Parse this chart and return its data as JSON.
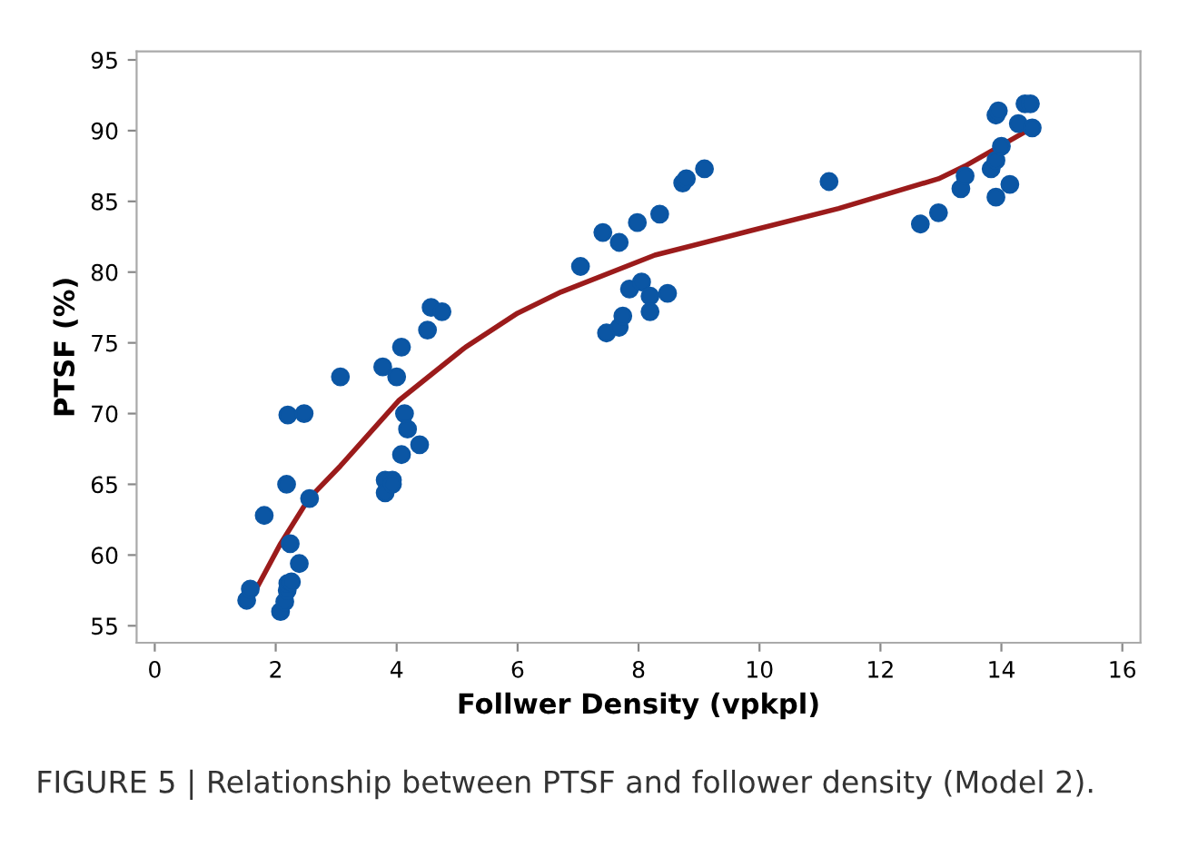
{
  "chart_data": {
    "type": "scatter",
    "xlabel": "Follwer Density (vpkpl)",
    "ylabel": "PTSF (%)",
    "annotations": [
      "FIGURE 5 | Relationship between PTSF and follower density (Model 2)."
    ],
    "xlim": [
      -0.3,
      16.3
    ],
    "ylim": [
      53.8,
      95.6
    ],
    "xticks": [
      0,
      2,
      4,
      6,
      8,
      10,
      12,
      14,
      16
    ],
    "yticks": [
      55,
      60,
      65,
      70,
      75,
      80,
      85,
      90,
      95
    ],
    "grid": false,
    "series": [
      {
        "marker": "circle",
        "color": "#0b56a4",
        "x": [
          1.52,
          1.58,
          1.81,
          2.08,
          2.15,
          2.19,
          2.2,
          2.26,
          2.24,
          2.2,
          2.47,
          2.18,
          2.39,
          2.56,
          3.07,
          3.77,
          4.0,
          4.08,
          4.13,
          4.18,
          4.08,
          4.38,
          3.81,
          3.81,
          3.93,
          3.93,
          4.51,
          4.57,
          4.75,
          7.04,
          7.41,
          7.68,
          7.98,
          8.35,
          8.73,
          8.79,
          9.09,
          7.47,
          7.68,
          7.74,
          7.85,
          8.05,
          8.19,
          8.19,
          8.48,
          11.15,
          12.66,
          12.96,
          13.33,
          13.4,
          13.83,
          13.91,
          14.0,
          13.91,
          14.14,
          13.91,
          13.95,
          14.28,
          14.39,
          14.48,
          14.51
        ],
        "values": [
          56.8,
          57.6,
          62.8,
          56.0,
          56.7,
          57.5,
          58.0,
          58.1,
          60.8,
          69.9,
          70.0,
          65.0,
          59.4,
          64.0,
          72.6,
          73.3,
          72.6,
          74.7,
          70.0,
          68.9,
          67.1,
          67.8,
          65.3,
          64.4,
          65.3,
          65.0,
          75.9,
          77.5,
          77.2,
          80.4,
          82.8,
          82.1,
          83.5,
          84.1,
          86.3,
          86.6,
          87.3,
          75.7,
          76.1,
          76.9,
          78.8,
          79.3,
          78.3,
          77.2,
          78.5,
          86.4,
          83.4,
          84.2,
          85.9,
          86.8,
          87.3,
          87.9,
          88.9,
          85.3,
          86.2,
          91.1,
          91.4,
          90.5,
          91.9,
          91.9,
          90.2
        ]
      },
      {
        "type": "line",
        "color": "#9b1b1b",
        "x": [
          1.69,
          2.08,
          2.55,
          3.07,
          4.03,
          5.14,
          6.0,
          6.72,
          8.27,
          9.83,
          11.31,
          12.96,
          13.4,
          14.51
        ],
        "values": [
          57.7,
          60.8,
          64.0,
          66.3,
          70.9,
          74.7,
          77.1,
          78.6,
          81.2,
          82.9,
          84.5,
          86.6,
          87.5,
          90.2
        ]
      }
    ]
  }
}
